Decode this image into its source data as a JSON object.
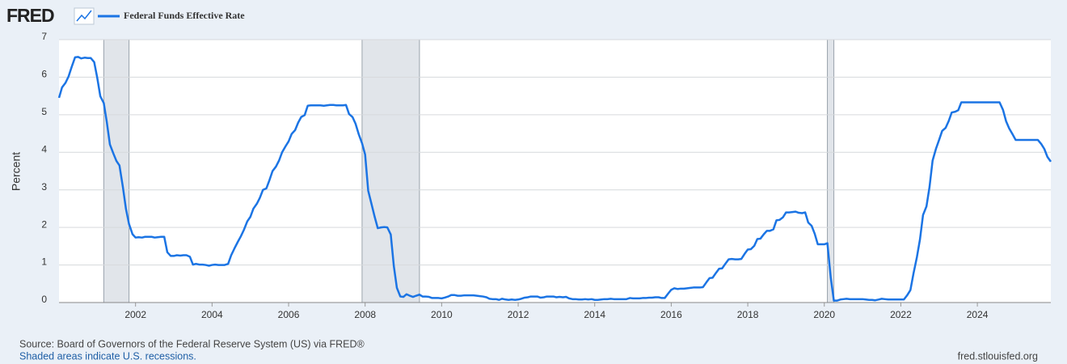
{
  "header": {
    "logo": "FRED"
  },
  "chart_data": {
    "type": "line",
    "y_label": "Percent",
    "x": [
      2000,
      2000.08,
      2000.17,
      2000.25,
      2000.33,
      2000.42,
      2000.5,
      2000.58,
      2000.67,
      2000.75,
      2000.83,
      2000.92,
      2001,
      2001.08,
      2001.17,
      2001.25,
      2001.33,
      2001.42,
      2001.5,
      2001.58,
      2001.67,
      2001.75,
      2001.83,
      2001.92,
      2002,
      2002.08,
      2002.17,
      2002.25,
      2002.33,
      2002.42,
      2002.5,
      2002.58,
      2002.67,
      2002.75,
      2002.83,
      2002.92,
      2003,
      2003.08,
      2003.17,
      2003.25,
      2003.33,
      2003.42,
      2003.5,
      2003.58,
      2003.67,
      2003.75,
      2003.83,
      2003.92,
      2004,
      2004.08,
      2004.17,
      2004.25,
      2004.33,
      2004.42,
      2004.5,
      2004.58,
      2004.67,
      2004.75,
      2004.83,
      2004.92,
      2005,
      2005.08,
      2005.17,
      2005.25,
      2005.33,
      2005.42,
      2005.5,
      2005.58,
      2005.67,
      2005.75,
      2005.83,
      2005.92,
      2006,
      2006.08,
      2006.17,
      2006.25,
      2006.33,
      2006.42,
      2006.5,
      2006.58,
      2006.67,
      2006.75,
      2006.83,
      2006.92,
      2007,
      2007.08,
      2007.17,
      2007.25,
      2007.33,
      2007.42,
      2007.5,
      2007.58,
      2007.67,
      2007.75,
      2007.83,
      2007.92,
      2008,
      2008.08,
      2008.17,
      2008.25,
      2008.33,
      2008.42,
      2008.5,
      2008.58,
      2008.67,
      2008.75,
      2008.83,
      2008.92,
      2009,
      2009.08,
      2009.17,
      2009.25,
      2009.33,
      2009.42,
      2009.5,
      2009.58,
      2009.67,
      2009.75,
      2009.83,
      2009.92,
      2010,
      2010.08,
      2010.17,
      2010.25,
      2010.33,
      2010.42,
      2010.5,
      2010.58,
      2010.67,
      2010.75,
      2010.83,
      2010.92,
      2011,
      2011.08,
      2011.17,
      2011.25,
      2011.33,
      2011.42,
      2011.5,
      2011.58,
      2011.67,
      2011.75,
      2011.83,
      2011.92,
      2012,
      2012.08,
      2012.17,
      2012.25,
      2012.33,
      2012.42,
      2012.5,
      2012.58,
      2012.67,
      2012.75,
      2012.83,
      2012.92,
      2013,
      2013.08,
      2013.17,
      2013.25,
      2013.33,
      2013.42,
      2013.5,
      2013.58,
      2013.67,
      2013.75,
      2013.83,
      2013.92,
      2014,
      2014.08,
      2014.17,
      2014.25,
      2014.33,
      2014.42,
      2014.5,
      2014.58,
      2014.67,
      2014.75,
      2014.83,
      2014.92,
      2015,
      2015.08,
      2015.17,
      2015.25,
      2015.33,
      2015.42,
      2015.5,
      2015.58,
      2015.67,
      2015.75,
      2015.83,
      2015.92,
      2016,
      2016.08,
      2016.17,
      2016.25,
      2016.33,
      2016.42,
      2016.5,
      2016.58,
      2016.67,
      2016.75,
      2016.83,
      2016.92,
      2017,
      2017.08,
      2017.17,
      2017.25,
      2017.33,
      2017.42,
      2017.5,
      2017.58,
      2017.67,
      2017.75,
      2017.83,
      2017.92,
      2018,
      2018.08,
      2018.17,
      2018.25,
      2018.33,
      2018.42,
      2018.5,
      2018.58,
      2018.67,
      2018.75,
      2018.83,
      2018.92,
      2019,
      2019.08,
      2019.17,
      2019.25,
      2019.33,
      2019.42,
      2019.5,
      2019.58,
      2019.67,
      2019.75,
      2019.83,
      2019.92,
      2020,
      2020.08,
      2020.17,
      2020.25,
      2020.33,
      2020.42,
      2020.5,
      2020.58,
      2020.67,
      2020.75,
      2020.83,
      2020.92,
      2021,
      2021.08,
      2021.17,
      2021.25,
      2021.33,
      2021.42,
      2021.5,
      2021.58,
      2021.67,
      2021.75,
      2021.83,
      2021.92,
      2022,
      2022.08,
      2022.17,
      2022.25,
      2022.33,
      2022.42,
      2022.5,
      2022.58,
      2022.67,
      2022.75,
      2022.83,
      2022.92,
      2023,
      2023.08,
      2023.17,
      2023.25,
      2023.33,
      2023.42,
      2023.5,
      2023.58,
      2023.67,
      2023.75,
      2023.83,
      2023.92,
      2024,
      2024.08,
      2024.17,
      2024.25,
      2024.33,
      2024.42,
      2024.5,
      2024.58,
      2024.67,
      2024.75,
      2024.83,
      2024.92,
      2025,
      2025.08,
      2025.17,
      2025.25,
      2025.33,
      2025.42,
      2025.5,
      2025.58,
      2025.67,
      2025.75,
      2025.83,
      2025.92
    ],
    "series": [
      {
        "name": "Federal Funds Effective Rate",
        "color": "#1b74e4",
        "values": [
          5.45,
          5.73,
          5.85,
          6.02,
          6.27,
          6.53,
          6.54,
          6.5,
          6.52,
          6.51,
          6.51,
          6.4,
          5.98,
          5.49,
          5.31,
          4.8,
          4.21,
          3.97,
          3.77,
          3.65,
          3.07,
          2.49,
          2.09,
          1.82,
          1.73,
          1.74,
          1.73,
          1.75,
          1.75,
          1.75,
          1.73,
          1.74,
          1.75,
          1.75,
          1.34,
          1.24,
          1.24,
          1.26,
          1.25,
          1.26,
          1.26,
          1.22,
          1.01,
          1.03,
          1.01,
          1.01,
          1.0,
          0.98,
          1.0,
          1.01,
          1.0,
          1.0,
          1.0,
          1.03,
          1.26,
          1.43,
          1.61,
          1.76,
          1.93,
          2.16,
          2.28,
          2.5,
          2.63,
          2.79,
          3.0,
          3.04,
          3.26,
          3.5,
          3.62,
          3.78,
          4.0,
          4.16,
          4.29,
          4.49,
          4.59,
          4.79,
          4.94,
          4.99,
          5.24,
          5.25,
          5.25,
          5.25,
          5.25,
          5.24,
          5.25,
          5.26,
          5.26,
          5.25,
          5.25,
          5.25,
          5.26,
          5.02,
          4.94,
          4.76,
          4.49,
          4.24,
          3.94,
          2.98,
          2.61,
          2.28,
          1.98,
          2.0,
          2.01,
          2.0,
          1.81,
          0.97,
          0.39,
          0.16,
          0.15,
          0.22,
          0.18,
          0.15,
          0.18,
          0.21,
          0.16,
          0.16,
          0.15,
          0.12,
          0.12,
          0.12,
          0.11,
          0.13,
          0.16,
          0.2,
          0.2,
          0.18,
          0.18,
          0.19,
          0.19,
          0.19,
          0.19,
          0.18,
          0.17,
          0.16,
          0.14,
          0.1,
          0.09,
          0.09,
          0.07,
          0.1,
          0.08,
          0.07,
          0.08,
          0.07,
          0.08,
          0.1,
          0.13,
          0.14,
          0.16,
          0.16,
          0.16,
          0.13,
          0.14,
          0.16,
          0.16,
          0.16,
          0.14,
          0.15,
          0.14,
          0.15,
          0.11,
          0.09,
          0.09,
          0.08,
          0.08,
          0.09,
          0.08,
          0.09,
          0.07,
          0.07,
          0.08,
          0.09,
          0.09,
          0.1,
          0.09,
          0.09,
          0.09,
          0.09,
          0.09,
          0.12,
          0.11,
          0.11,
          0.11,
          0.12,
          0.12,
          0.13,
          0.13,
          0.14,
          0.14,
          0.12,
          0.12,
          0.24,
          0.34,
          0.38,
          0.36,
          0.37,
          0.37,
          0.38,
          0.39,
          0.4,
          0.4,
          0.4,
          0.41,
          0.54,
          0.65,
          0.66,
          0.79,
          0.9,
          0.91,
          1.04,
          1.15,
          1.16,
          1.15,
          1.15,
          1.16,
          1.3,
          1.41,
          1.42,
          1.51,
          1.69,
          1.7,
          1.82,
          1.91,
          1.91,
          1.95,
          2.19,
          2.2,
          2.27,
          2.4,
          2.4,
          2.41,
          2.42,
          2.39,
          2.38,
          2.4,
          2.13,
          2.04,
          1.83,
          1.55,
          1.55,
          1.55,
          1.58,
          0.65,
          0.05,
          0.05,
          0.08,
          0.09,
          0.1,
          0.09,
          0.09,
          0.09,
          0.09,
          0.09,
          0.08,
          0.07,
          0.07,
          0.06,
          0.08,
          0.1,
          0.09,
          0.08,
          0.08,
          0.08,
          0.08,
          0.08,
          0.08,
          0.2,
          0.33,
          0.77,
          1.21,
          1.68,
          2.33,
          2.56,
          3.08,
          3.78,
          4.1,
          4.33,
          4.57,
          4.65,
          4.83,
          5.06,
          5.08,
          5.12,
          5.33,
          5.33,
          5.33,
          5.33,
          5.33,
          5.33,
          5.33,
          5.33,
          5.33,
          5.33,
          5.33,
          5.33,
          5.33,
          5.13,
          4.83,
          4.64,
          4.48,
          4.33,
          4.33,
          4.33,
          4.33,
          4.33,
          4.33,
          4.33,
          4.33,
          4.22,
          4.09,
          3.88,
          3.75
        ]
      }
    ],
    "recessions": [
      [
        2001.17,
        2001.83
      ],
      [
        2007.92,
        2009.42
      ],
      [
        2020.08,
        2020.25
      ]
    ],
    "recession_color": "#e1e5ea",
    "xlim": [
      2000,
      2025.92
    ],
    "ylim": [
      0,
      7
    ],
    "xticks": [
      2002,
      2004,
      2006,
      2008,
      2010,
      2012,
      2014,
      2016,
      2018,
      2020,
      2022,
      2024
    ],
    "yticks": [
      0,
      1,
      2,
      3,
      4,
      5,
      6,
      7
    ],
    "grid": true
  },
  "footer": {
    "source": "Source: Board of Governors of the Federal Reserve System (US) via FRED®",
    "note": "Shaded areas indicate U.S. recessions.",
    "credit": "fred.stlouisfed.org"
  }
}
